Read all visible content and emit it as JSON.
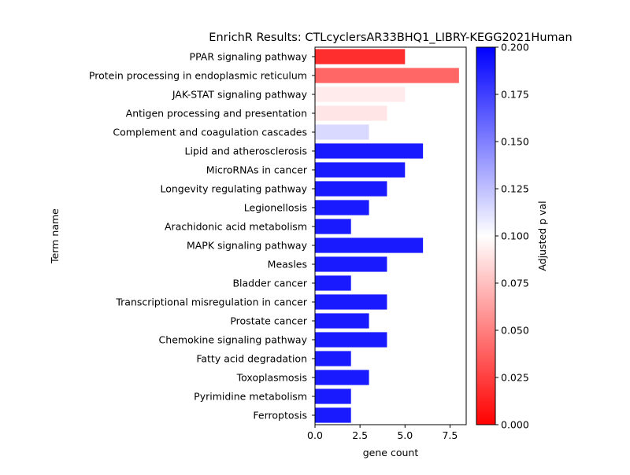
{
  "chart_data": {
    "type": "bar",
    "orientation": "horizontal",
    "title": "EnrichR Results: CTLcyclersAR33BHQ1_LIBRY-KEGG2021Human",
    "xlabel": "gene count",
    "ylabel": "Term name",
    "xlim": [
      0,
      8.4
    ],
    "xticks": [
      0.0,
      2.5,
      5.0,
      7.5
    ],
    "xtick_labels": [
      "0.0",
      "2.5",
      "5.0",
      "7.5"
    ],
    "grid": false,
    "bars": [
      {
        "term": "PPAR signaling pathway",
        "gene_count": 5,
        "adjusted_p": 0.018
      },
      {
        "term": "Protein processing in endoplasmic reticulum",
        "gene_count": 8,
        "adjusted_p": 0.04
      },
      {
        "term": "JAK-STAT signaling pathway",
        "gene_count": 5,
        "adjusted_p": 0.092
      },
      {
        "term": "Antigen processing and presentation",
        "gene_count": 4,
        "adjusted_p": 0.09
      },
      {
        "term": "Complement and coagulation cascades",
        "gene_count": 3,
        "adjusted_p": 0.115
      },
      {
        "term": "Lipid and atherosclerosis",
        "gene_count": 6,
        "adjusted_p": 0.19
      },
      {
        "term": "MicroRNAs in cancer",
        "gene_count": 5,
        "adjusted_p": 0.19
      },
      {
        "term": "Longevity regulating pathway",
        "gene_count": 4,
        "adjusted_p": 0.19
      },
      {
        "term": "Legionellosis",
        "gene_count": 3,
        "adjusted_p": 0.19
      },
      {
        "term": "Arachidonic acid metabolism",
        "gene_count": 2,
        "adjusted_p": 0.19
      },
      {
        "term": "MAPK signaling pathway",
        "gene_count": 6,
        "adjusted_p": 0.19
      },
      {
        "term": "Measles",
        "gene_count": 4,
        "adjusted_p": 0.19
      },
      {
        "term": "Bladder cancer",
        "gene_count": 2,
        "adjusted_p": 0.19
      },
      {
        "term": "Transcriptional misregulation in cancer",
        "gene_count": 4,
        "adjusted_p": 0.19
      },
      {
        "term": "Prostate cancer",
        "gene_count": 3,
        "adjusted_p": 0.19
      },
      {
        "term": "Chemokine signaling pathway",
        "gene_count": 4,
        "adjusted_p": 0.19
      },
      {
        "term": "Fatty acid degradation",
        "gene_count": 2,
        "adjusted_p": 0.19
      },
      {
        "term": "Toxoplasmosis",
        "gene_count": 3,
        "adjusted_p": 0.19
      },
      {
        "term": "Pyrimidine metabolism",
        "gene_count": 2,
        "adjusted_p": 0.19
      },
      {
        "term": "Ferroptosis",
        "gene_count": 2,
        "adjusted_p": 0.19
      }
    ],
    "colorbar": {
      "label": "Adjusted p val",
      "range": [
        0.0,
        0.2
      ],
      "colormap": "bwr_r",
      "color_low": "#ff0000",
      "color_mid": "#ffffff",
      "color_high": "#0000ff",
      "ticks": [
        0.0,
        0.025,
        0.05,
        0.075,
        0.1,
        0.125,
        0.15,
        0.175,
        0.2
      ],
      "tick_labels": [
        "0.000",
        "0.025",
        "0.050",
        "0.075",
        "0.100",
        "0.125",
        "0.150",
        "0.175",
        "0.200"
      ]
    }
  }
}
